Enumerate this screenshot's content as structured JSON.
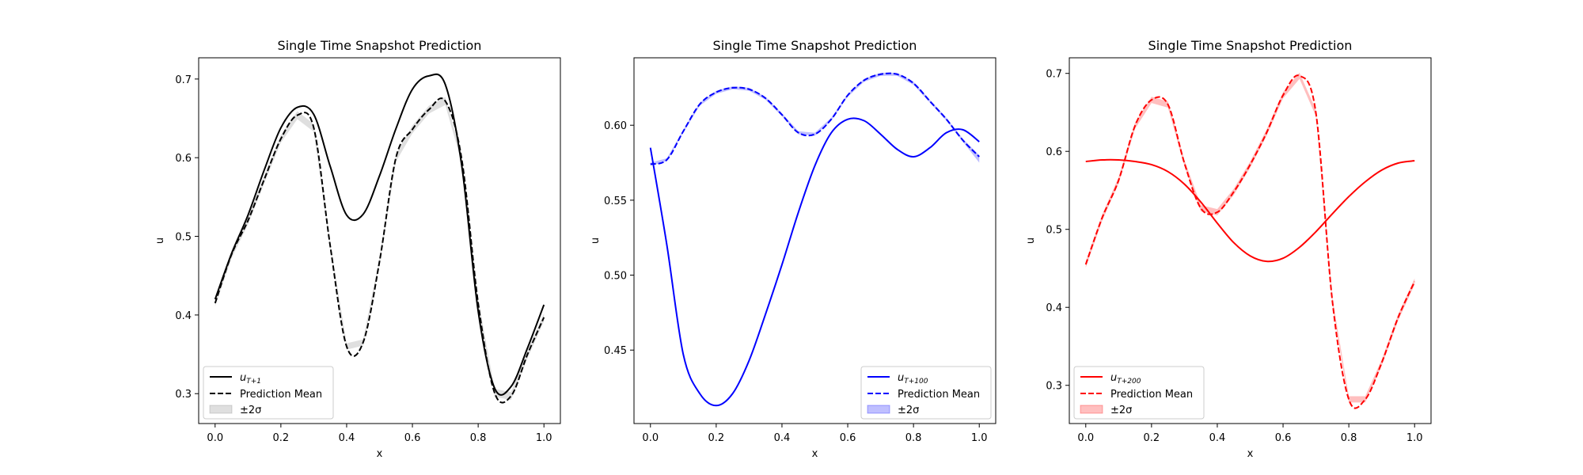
{
  "chart_data": [
    {
      "type": "line",
      "title": "Single Time Snapshot Prediction",
      "xlabel": "x",
      "ylabel": "u",
      "xlim": [
        -0.05,
        1.05
      ],
      "ylim": [
        0.262,
        0.727
      ],
      "xticks": [
        0.0,
        0.2,
        0.4,
        0.6,
        0.8,
        1.0
      ],
      "xtick_labels": [
        "0.0",
        "0.2",
        "0.4",
        "0.6",
        "0.8",
        "1.0"
      ],
      "yticks": [
        0.3,
        0.4,
        0.5,
        0.6,
        0.7
      ],
      "ytick_labels": [
        "0.3",
        "0.4",
        "0.5",
        "0.6",
        "0.7"
      ],
      "color": "#000000",
      "band_color": "#808080",
      "legend_position": "lower left",
      "legend": {
        "truth": "u",
        "truth_sub": "T+1",
        "mean": "Prediction Mean",
        "band": "±2σ"
      },
      "x": [
        0.0,
        0.05,
        0.1,
        0.15,
        0.2,
        0.25,
        0.3,
        0.35,
        0.4,
        0.45,
        0.5,
        0.55,
        0.6,
        0.65,
        0.7,
        0.75,
        0.8,
        0.85,
        0.9,
        0.95,
        1.0
      ],
      "series": [
        {
          "name": "truth",
          "style": "solid",
          "values": [
            0.42,
            0.478,
            0.527,
            0.585,
            0.638,
            0.664,
            0.655,
            0.589,
            0.527,
            0.528,
            0.577,
            0.637,
            0.687,
            0.704,
            0.693,
            0.59,
            0.405,
            0.307,
            0.309,
            0.358,
            0.413
          ]
        },
        {
          "name": "mean",
          "style": "dashed",
          "values": [
            0.415,
            0.477,
            0.52,
            0.573,
            0.624,
            0.654,
            0.638,
            0.488,
            0.36,
            0.365,
            0.468,
            0.6,
            0.636,
            0.661,
            0.672,
            0.598,
            0.415,
            0.301,
            0.297,
            0.35,
            0.397
          ]
        },
        {
          "name": "band",
          "lower": [
            0.411,
            0.472,
            0.515,
            0.568,
            0.619,
            0.649,
            0.633,
            0.484,
            0.356,
            0.361,
            0.463,
            0.595,
            0.631,
            0.656,
            0.667,
            0.593,
            0.41,
            0.296,
            0.292,
            0.345,
            0.392
          ],
          "upper": [
            0.419,
            0.482,
            0.525,
            0.578,
            0.629,
            0.659,
            0.643,
            0.492,
            0.364,
            0.369,
            0.473,
            0.605,
            0.641,
            0.666,
            0.677,
            0.603,
            0.42,
            0.306,
            0.302,
            0.355,
            0.402
          ]
        }
      ]
    },
    {
      "type": "line",
      "title": "Single Time Snapshot Prediction",
      "xlabel": "x",
      "ylabel": "u",
      "xlim": [
        -0.05,
        1.05
      ],
      "ylim": [
        0.401,
        0.645
      ],
      "xticks": [
        0.0,
        0.2,
        0.4,
        0.6,
        0.8,
        1.0
      ],
      "xtick_labels": [
        "0.0",
        "0.2",
        "0.4",
        "0.6",
        "0.8",
        "1.0"
      ],
      "yticks": [
        0.45,
        0.5,
        0.55,
        0.6
      ],
      "ytick_labels": [
        "0.45",
        "0.50",
        "0.55",
        "0.60"
      ],
      "color": "#0000ff",
      "band_color": "#0000ff",
      "legend_position": "lower right",
      "legend": {
        "truth": "u",
        "truth_sub": "T+100",
        "mean": "Prediction Mean",
        "band": "±2σ"
      },
      "x": [
        0.0,
        0.05,
        0.1,
        0.15,
        0.2,
        0.25,
        0.3,
        0.35,
        0.4,
        0.45,
        0.5,
        0.55,
        0.6,
        0.65,
        0.7,
        0.75,
        0.8,
        0.85,
        0.9,
        0.95,
        1.0
      ],
      "series": [
        {
          "name": "truth",
          "style": "solid",
          "values": [
            0.585,
            0.52,
            0.447,
            0.421,
            0.413,
            0.421,
            0.443,
            0.474,
            0.507,
            0.542,
            0.573,
            0.595,
            0.604,
            0.603,
            0.594,
            0.584,
            0.579,
            0.585,
            0.595,
            0.597,
            0.589
          ]
        },
        {
          "name": "mean",
          "style": "dashed",
          "values": [
            0.574,
            0.577,
            0.596,
            0.614,
            0.622,
            0.625,
            0.624,
            0.618,
            0.607,
            0.595,
            0.594,
            0.604,
            0.62,
            0.63,
            0.634,
            0.634,
            0.628,
            0.616,
            0.604,
            0.59,
            0.579
          ]
        },
        {
          "name": "band",
          "lower": [
            0.573,
            0.576,
            0.595,
            0.613,
            0.621,
            0.624,
            0.623,
            0.617,
            0.606,
            0.594,
            0.593,
            0.603,
            0.619,
            0.629,
            0.633,
            0.633,
            0.627,
            0.615,
            0.603,
            0.589,
            0.575
          ],
          "upper": [
            0.575,
            0.578,
            0.597,
            0.615,
            0.623,
            0.626,
            0.625,
            0.619,
            0.608,
            0.596,
            0.595,
            0.605,
            0.621,
            0.631,
            0.635,
            0.635,
            0.629,
            0.617,
            0.605,
            0.591,
            0.58
          ]
        }
      ]
    },
    {
      "type": "line",
      "title": "Single Time Snapshot Prediction",
      "xlabel": "x",
      "ylabel": "u",
      "xlim": [
        -0.05,
        1.05
      ],
      "ylim": [
        0.251,
        0.72
      ],
      "xticks": [
        0.0,
        0.2,
        0.4,
        0.6,
        0.8,
        1.0
      ],
      "xtick_labels": [
        "0.0",
        "0.2",
        "0.4",
        "0.6",
        "0.8",
        "1.0"
      ],
      "yticks": [
        0.3,
        0.4,
        0.5,
        0.6,
        0.7
      ],
      "ytick_labels": [
        "0.3",
        "0.4",
        "0.5",
        "0.6",
        "0.7"
      ],
      "color": "#ff0000",
      "band_color": "#ff0000",
      "legend_position": "lower left",
      "legend": {
        "truth": "u",
        "truth_sub": "T+200",
        "mean": "Prediction Mean",
        "band": "±2σ"
      },
      "x": [
        0.0,
        0.05,
        0.1,
        0.15,
        0.2,
        0.25,
        0.3,
        0.35,
        0.4,
        0.45,
        0.5,
        0.55,
        0.6,
        0.65,
        0.7,
        0.75,
        0.8,
        0.85,
        0.9,
        0.95,
        1.0
      ],
      "series": [
        {
          "name": "truth",
          "style": "solid",
          "values": [
            0.587,
            0.589,
            0.589,
            0.587,
            0.583,
            0.574,
            0.558,
            0.535,
            0.508,
            0.483,
            0.466,
            0.459,
            0.463,
            0.477,
            0.497,
            0.52,
            0.542,
            0.561,
            0.576,
            0.585,
            0.588
          ]
        },
        {
          "name": "mean",
          "style": "dashed",
          "values": [
            0.455,
            0.515,
            0.563,
            0.633,
            0.666,
            0.66,
            0.585,
            0.527,
            0.522,
            0.548,
            0.583,
            0.624,
            0.672,
            0.697,
            0.649,
            0.408,
            0.282,
            0.282,
            0.329,
            0.387,
            0.433
          ]
        },
        {
          "name": "band",
          "lower": [
            0.451,
            0.511,
            0.559,
            0.629,
            0.662,
            0.656,
            0.581,
            0.523,
            0.518,
            0.544,
            0.579,
            0.62,
            0.668,
            0.693,
            0.645,
            0.404,
            0.278,
            0.278,
            0.325,
            0.383,
            0.429
          ],
          "upper": [
            0.459,
            0.519,
            0.567,
            0.637,
            0.67,
            0.664,
            0.589,
            0.531,
            0.526,
            0.552,
            0.587,
            0.628,
            0.676,
            0.701,
            0.653,
            0.412,
            0.286,
            0.286,
            0.333,
            0.391,
            0.437
          ]
        }
      ]
    }
  ]
}
